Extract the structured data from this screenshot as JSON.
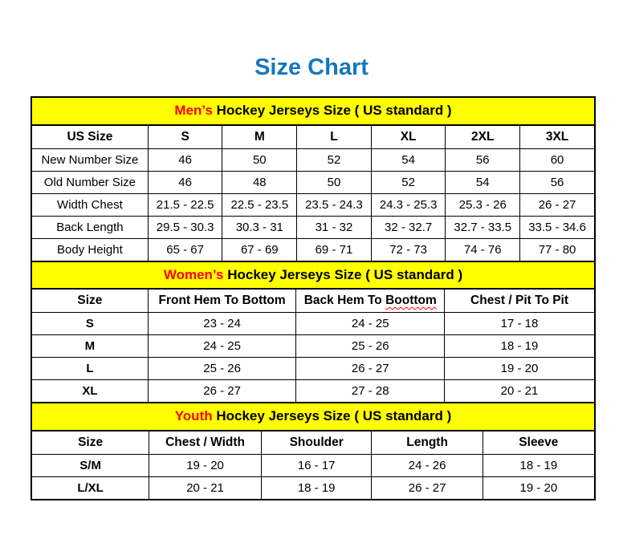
{
  "page": {
    "title": "Size Chart"
  },
  "colors": {
    "title": "#1577c0",
    "band_bg": "#ffff00",
    "accent_red": "#ff0000",
    "border": "#000000"
  },
  "chart_data": [
    {
      "type": "table",
      "id": "mens",
      "band_accent": "Men’s",
      "band_rest": " Hockey Jerseys Size ( US standard )",
      "columns": [
        "US Size",
        "S",
        "M",
        "L",
        "XL",
        "2XL",
        "3XL"
      ],
      "col_widths_pct": [
        20.7,
        13.2,
        13.2,
        13.2,
        13.2,
        13.2,
        13.3
      ],
      "bold_row_labels": false,
      "rows": [
        {
          "label": "New Number Size",
          "values": [
            "46",
            "50",
            "52",
            "54",
            "56",
            "60"
          ]
        },
        {
          "label": "Old Number Size",
          "values": [
            "46",
            "48",
            "50",
            "52",
            "54",
            "56"
          ]
        },
        {
          "label": "Width Chest",
          "values": [
            "21.5 - 22.5",
            "22.5 - 23.5",
            "23.5 - 24.3",
            "24.3 - 25.3",
            "25.3 - 26",
            "26 - 27"
          ]
        },
        {
          "label": "Back Length",
          "values": [
            "29.5 - 30.3",
            "30.3 - 31",
            "31 - 32",
            "32 - 32.7",
            "32.7 - 33.5",
            "33.5 - 34.6"
          ]
        },
        {
          "label": "Body Height",
          "values": [
            "65 - 67",
            "67 - 69",
            "69 - 71",
            "72 - 73",
            "74 - 76",
            "77 - 80"
          ]
        }
      ]
    },
    {
      "type": "table",
      "id": "womens",
      "band_accent": "Women’s",
      "band_rest": " Hockey Jerseys Size ( US standard )",
      "columns": [
        "Size",
        "Front Hem To Bottom",
        "Back Hem To Boottom",
        "Chest / Pit To Pit"
      ],
      "col_widths_pct": [
        20.7,
        26.3,
        26.3,
        26.7
      ],
      "spellcheck_wavy": {
        "column_index": 2,
        "prefix": "Back Hem To ",
        "word": "Boottom"
      },
      "bold_row_labels": true,
      "rows": [
        {
          "label": "S",
          "values": [
            "23 - 24",
            "24 - 25",
            "17 - 18"
          ]
        },
        {
          "label": "M",
          "values": [
            "24 - 25",
            "25 - 26",
            "18 - 19"
          ]
        },
        {
          "label": "L",
          "values": [
            "25 - 26",
            "26 - 27",
            "19 - 20"
          ]
        },
        {
          "label": "XL",
          "values": [
            "26 - 27",
            "27 - 28",
            "20 - 21"
          ]
        }
      ]
    },
    {
      "type": "table",
      "id": "youth",
      "band_accent": "Youth",
      "band_rest": " Hockey Jerseys Size ( US standard )",
      "columns": [
        "Size",
        "Chest / Width",
        "Shoulder",
        "Length",
        "Sleeve"
      ],
      "col_widths_pct": [
        20.9,
        19.9,
        19.6,
        19.7,
        19.9
      ],
      "bold_row_labels": true,
      "rows": [
        {
          "label": "S/M",
          "values": [
            "19 - 20",
            "16 - 17",
            "24 - 26",
            "18 - 19"
          ]
        },
        {
          "label": "L/XL",
          "values": [
            "20 - 21",
            "18 - 19",
            "26 - 27",
            "19 - 20"
          ]
        }
      ]
    }
  ]
}
